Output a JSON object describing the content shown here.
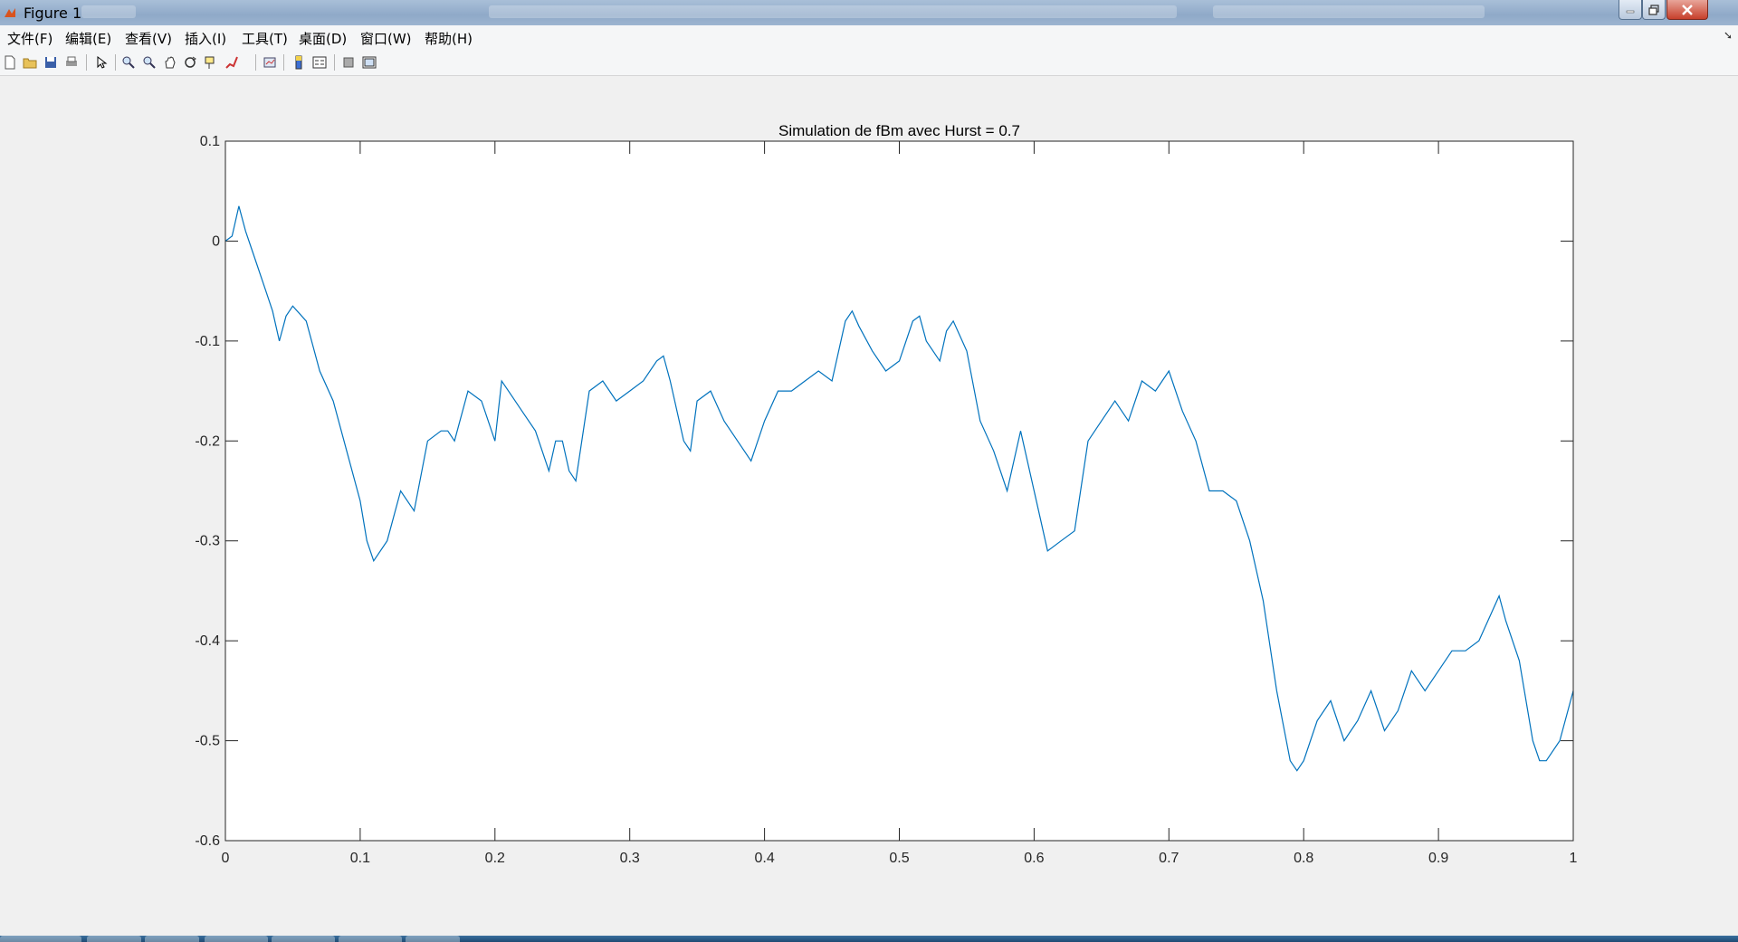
{
  "window": {
    "title": "Figure 1"
  },
  "menu": [
    "文件(F)",
    "编辑(E)",
    "查看(V)",
    "插入(I)",
    "工具(T)",
    "桌面(D)",
    "窗口(W)",
    "帮助(H)"
  ],
  "toolbar_icons": [
    "new-figure-icon",
    "open-file-icon",
    "save-icon",
    "print-icon",
    "edit-plot-icon",
    "zoom-in-icon",
    "zoom-out-icon",
    "pan-icon",
    "rotate-3d-icon",
    "data-cursor-icon",
    "brush-icon",
    "link-plot-icon",
    "colorbar-icon",
    "legend-icon",
    "hide-plot-tools-icon",
    "show-plot-tools-icon"
  ],
  "chart_data": {
    "type": "line",
    "title": "Simulation de fBm avec Hurst = 0.7",
    "xlabel": "",
    "ylabel": "",
    "xlim": [
      0,
      1
    ],
    "ylim": [
      -0.6,
      0.1
    ],
    "xticks": [
      "0",
      "0.1",
      "0.2",
      "0.3",
      "0.4",
      "0.5",
      "0.6",
      "0.7",
      "0.8",
      "0.9",
      "1"
    ],
    "yticks": [
      "0.1",
      "0",
      "-0.1",
      "-0.2",
      "-0.3",
      "-0.4",
      "-0.5",
      "-0.6"
    ],
    "grid": false,
    "line_color": "#0072bd",
    "series": [
      {
        "x": [
          0,
          0.005,
          0.01,
          0.015,
          0.02,
          0.03,
          0.035,
          0.04,
          0.045,
          0.05,
          0.06,
          0.07,
          0.08,
          0.09,
          0.1,
          0.105,
          0.11,
          0.12,
          0.13,
          0.14,
          0.15,
          0.16,
          0.165,
          0.17,
          0.18,
          0.19,
          0.2,
          0.205,
          0.21,
          0.22,
          0.23,
          0.24,
          0.245,
          0.25,
          0.255,
          0.26,
          0.27,
          0.28,
          0.29,
          0.3,
          0.31,
          0.32,
          0.325,
          0.33,
          0.34,
          0.345,
          0.35,
          0.36,
          0.37,
          0.38,
          0.39,
          0.4,
          0.41,
          0.42,
          0.43,
          0.44,
          0.45,
          0.46,
          0.465,
          0.47,
          0.48,
          0.49,
          0.5,
          0.51,
          0.515,
          0.52,
          0.53,
          0.535,
          0.54,
          0.55,
          0.56,
          0.57,
          0.58,
          0.59,
          0.6,
          0.61,
          0.62,
          0.63,
          0.64,
          0.65,
          0.66,
          0.67,
          0.68,
          0.69,
          0.7,
          0.71,
          0.72,
          0.73,
          0.74,
          0.75,
          0.76,
          0.77,
          0.78,
          0.79,
          0.795,
          0.8,
          0.81,
          0.82,
          0.83,
          0.84,
          0.85,
          0.86,
          0.87,
          0.88,
          0.89,
          0.9,
          0.91,
          0.92,
          0.93,
          0.94,
          0.945,
          0.95,
          0.96,
          0.97,
          0.975,
          0.98,
          0.99,
          1.0
        ],
        "y": [
          0.0,
          0.005,
          0.035,
          0.01,
          -0.01,
          -0.05,
          -0.07,
          -0.1,
          -0.075,
          -0.065,
          -0.08,
          -0.13,
          -0.16,
          -0.21,
          -0.26,
          -0.3,
          -0.32,
          -0.3,
          -0.25,
          -0.27,
          -0.2,
          -0.19,
          -0.19,
          -0.2,
          -0.15,
          -0.16,
          -0.2,
          -0.14,
          -0.15,
          -0.17,
          -0.19,
          -0.23,
          -0.2,
          -0.2,
          -0.23,
          -0.24,
          -0.15,
          -0.14,
          -0.16,
          -0.15,
          -0.14,
          -0.12,
          -0.115,
          -0.14,
          -0.2,
          -0.21,
          -0.16,
          -0.15,
          -0.18,
          -0.2,
          -0.22,
          -0.18,
          -0.15,
          -0.15,
          -0.14,
          -0.13,
          -0.14,
          -0.08,
          -0.07,
          -0.085,
          -0.11,
          -0.13,
          -0.12,
          -0.08,
          -0.075,
          -0.1,
          -0.12,
          -0.09,
          -0.08,
          -0.11,
          -0.18,
          -0.21,
          -0.25,
          -0.19,
          -0.25,
          -0.31,
          -0.3,
          -0.29,
          -0.2,
          -0.18,
          -0.16,
          -0.18,
          -0.14,
          -0.15,
          -0.13,
          -0.17,
          -0.2,
          -0.25,
          -0.25,
          -0.26,
          -0.3,
          -0.36,
          -0.45,
          -0.52,
          -0.53,
          -0.52,
          -0.48,
          -0.46,
          -0.5,
          -0.48,
          -0.45,
          -0.49,
          -0.47,
          -0.43,
          -0.45,
          -0.43,
          -0.41,
          -0.41,
          -0.4,
          -0.37,
          -0.355,
          -0.38,
          -0.42,
          -0.5,
          -0.52,
          -0.52,
          -0.5,
          -0.45
        ]
      }
    ]
  }
}
